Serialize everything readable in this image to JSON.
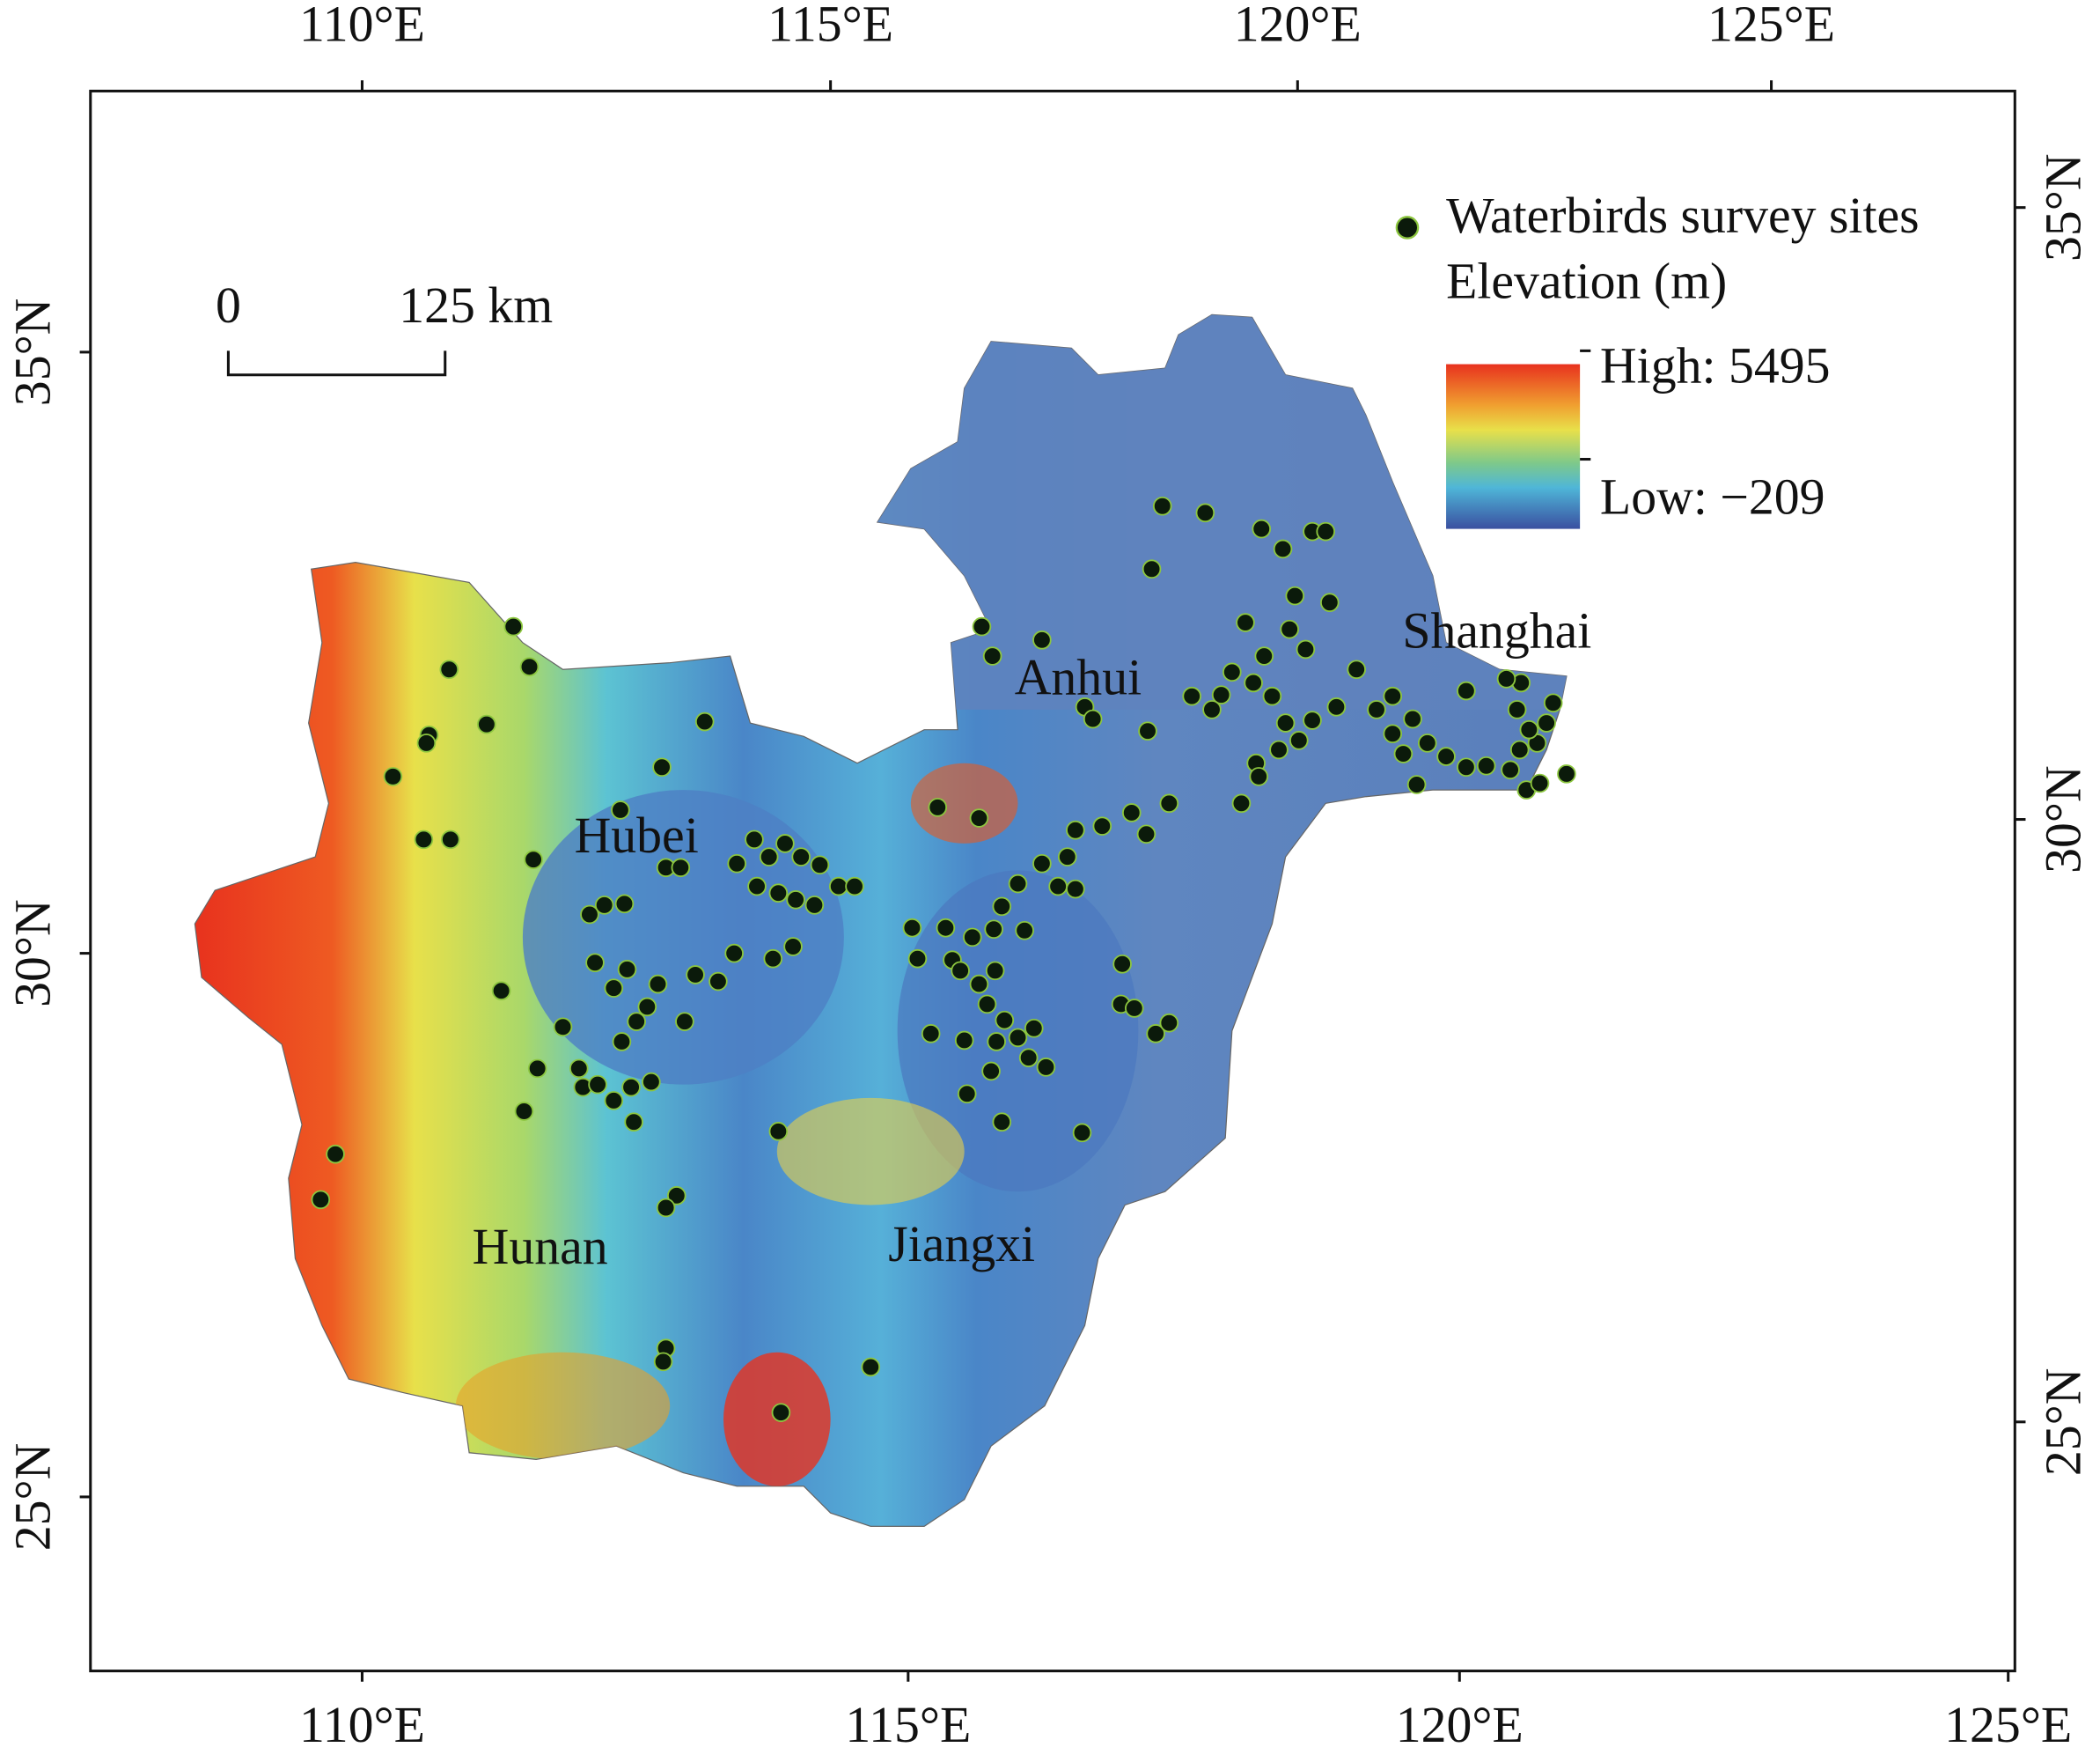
{
  "axes": {
    "top": [
      "110°E",
      "115°E",
      "120°E",
      "125°E"
    ],
    "bottom": [
      "110°E",
      "115°E",
      "120°E",
      "125°E"
    ],
    "left": [
      "35°N",
      "30°N",
      "25°N"
    ],
    "right": [
      "35°N",
      "30°N",
      "25°N"
    ]
  },
  "scale_bar": {
    "start": "0",
    "end": "125 km"
  },
  "legend": {
    "sites": "Waterbirds survey sites",
    "elevation_title": "Elevation (m)",
    "high": "High: 5495",
    "low": "Low: −209"
  },
  "regions": [
    "Hubei",
    "Anhui",
    "Shanghai",
    "Hunan",
    "Jiangxi"
  ]
}
